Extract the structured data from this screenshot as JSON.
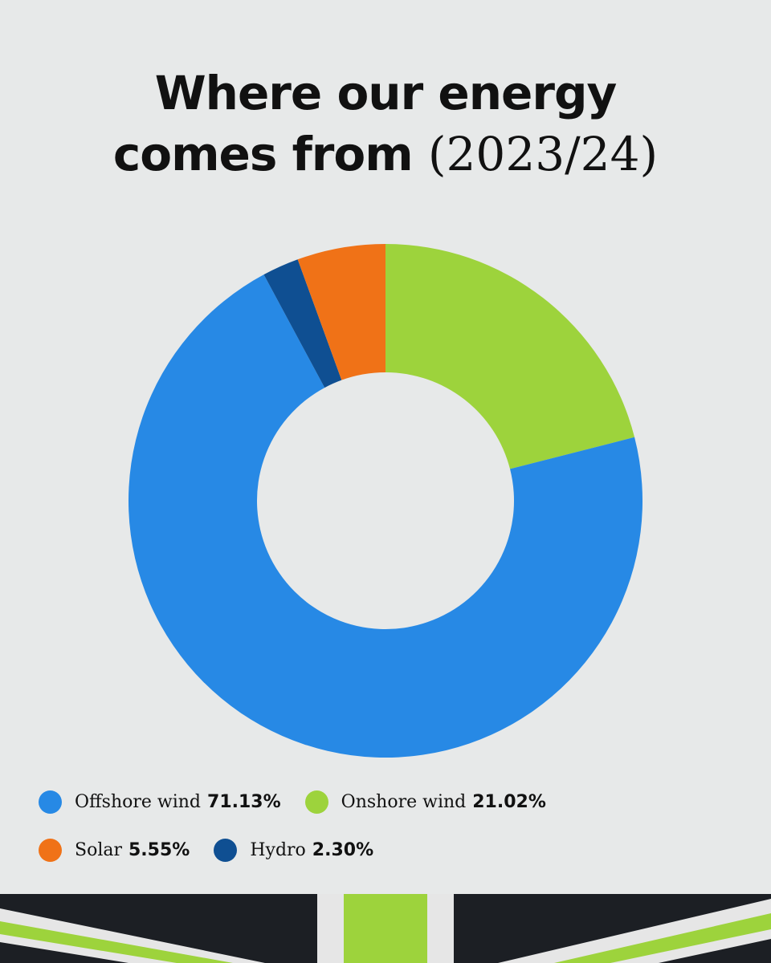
{
  "title": {
    "line1": "Where our energy",
    "line2_bold": "comes from",
    "line2_light": "(2023/24)"
  },
  "chart_data": {
    "type": "pie",
    "variant": "donut",
    "unit": "%",
    "series": [
      {
        "name": "Offshore wind",
        "value": 71.13,
        "label": "71.13%",
        "color": "#2789e5"
      },
      {
        "name": "Onshore wind",
        "value": 21.02,
        "label": "21.02%",
        "color": "#9dd33c"
      },
      {
        "name": "Solar",
        "value": 5.55,
        "label": "5.55%",
        "color": "#f07217"
      },
      {
        "name": "Hydro",
        "value": 2.3,
        "label": "2.30%",
        "color": "#0f4f92"
      }
    ],
    "draw_order": [
      "Onshore wind",
      "Offshore wind",
      "Hydro",
      "Solar"
    ],
    "legend_position": "bottom-left"
  },
  "banner": {
    "colors": {
      "dark": "#1c1f24",
      "stripe_white": "#e6e6e6",
      "stripe_green": "#9dd33c"
    }
  }
}
